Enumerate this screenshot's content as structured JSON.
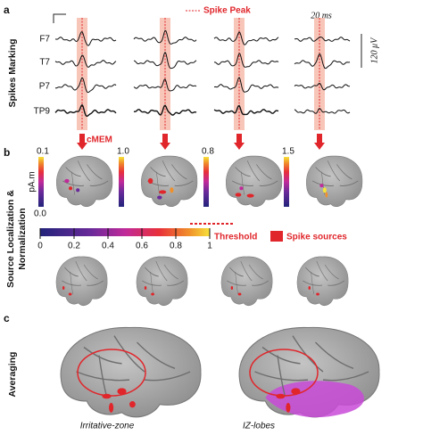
{
  "panel_a": {
    "label": "a",
    "legend": "Spike Peak",
    "channels": [
      "F7",
      "T7",
      "P7",
      "TP9"
    ],
    "time_scale": "20 ms",
    "amp_scale": "120 μV",
    "row_title": "Spikes Marking"
  },
  "panel_b": {
    "label": "b",
    "method": "cMEM",
    "row_title": [
      "Source Localization &",
      "Normalization"
    ],
    "colorbars": [
      {
        "max": "0.1",
        "unit": "pA.m",
        "min": "0.0"
      },
      {
        "max": "1.0"
      },
      {
        "max": "0.8"
      },
      {
        "max": "1.5"
      }
    ],
    "scale_ticks": [
      "0",
      "0.2",
      "0.4",
      "0.6",
      "0.8",
      "1"
    ],
    "threshold": "Threshold",
    "sources": "Spike sources"
  },
  "panel_c": {
    "label": "c",
    "row_title": "Averaging",
    "captions": [
      "Irritative-zone",
      "IZ-lobes"
    ]
  }
}
